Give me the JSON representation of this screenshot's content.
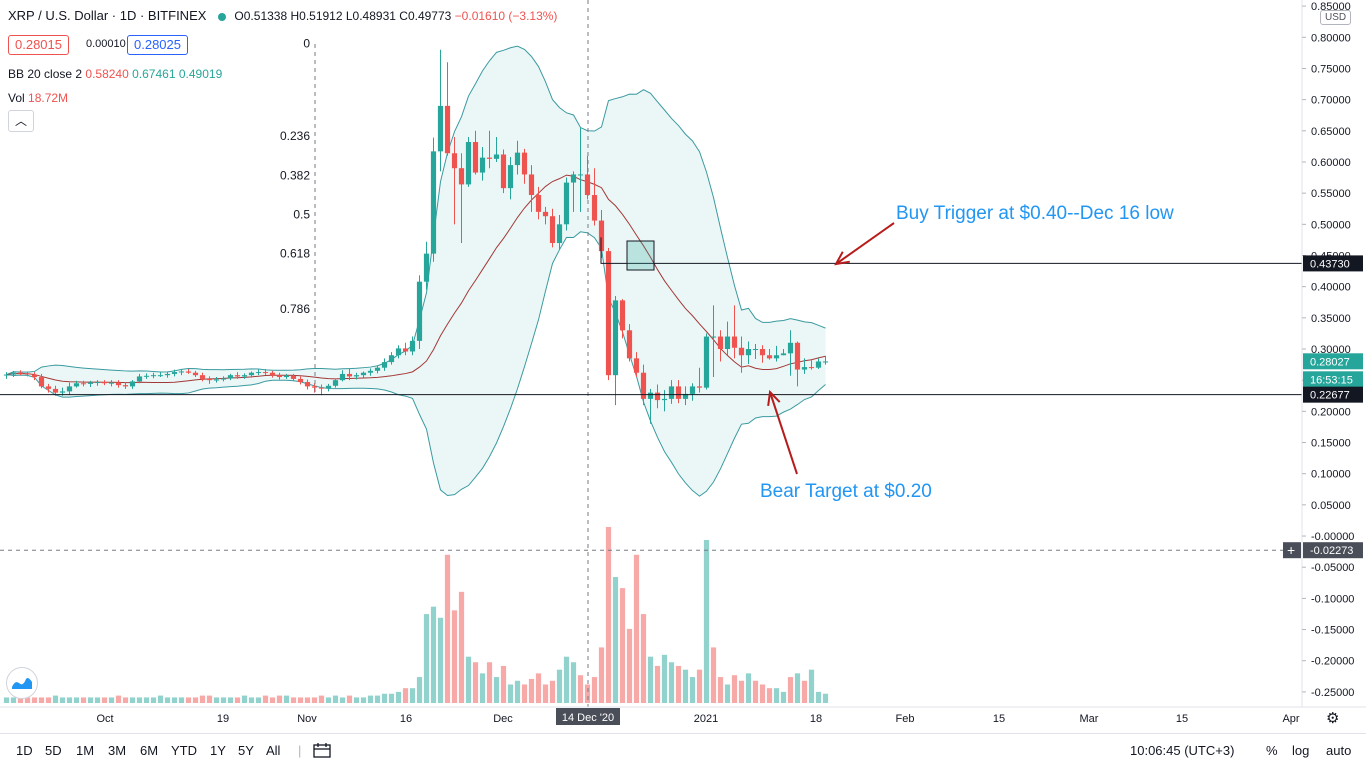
{
  "header": {
    "symbol": "XRP / U.S. Dollar · 1D · BITFINEX",
    "open": "O0.51338",
    "high": "H0.51912",
    "low": "L0.48931",
    "close": "C0.49773",
    "change": "−0.01610 (−3.13%)",
    "bid": "0.28015",
    "spread": "0.00010",
    "ask": "0.28025"
  },
  "indicators": {
    "bb_label": "BB 20 close 2",
    "bb_values": [
      "0.58240",
      "0.67461",
      "0.49019"
    ],
    "vol_label": "Vol",
    "vol_value": "18.72M"
  },
  "currency": "USD",
  "chart_data": {
    "type": "candlestick",
    "x_axis_ticks": [
      "Oct",
      "19",
      "Nov",
      "16",
      "Dec",
      "2021",
      "18",
      "Feb",
      "15",
      "Mar",
      "15",
      "Apr"
    ],
    "crosshair_date": "14 Dec '20",
    "y_axis_ticks": [
      "0.85000",
      "0.80000",
      "0.75000",
      "0.70000",
      "0.65000",
      "0.60000",
      "0.55000",
      "0.50000",
      "0.45000",
      "0.40000",
      "0.35000",
      "0.30000",
      "0.25000",
      "0.20000",
      "0.15000",
      "0.10000",
      "0.05000",
      "-0.00000",
      "-0.05000",
      "-0.10000",
      "-0.15000",
      "-0.20000",
      "-0.25000"
    ],
    "ylim": [
      -0.255,
      0.855
    ],
    "price_labels": {
      "level_high": "0.43730",
      "last": "0.28027",
      "countdown": "16:53:15",
      "level_low": "0.22677",
      "crosshair": "-0.02273"
    },
    "fibonacci": [
      {
        "label": "0",
        "price": 0.79
      },
      {
        "label": "0.236",
        "price": 0.642
      },
      {
        "label": "0.382",
        "price": 0.578
      },
      {
        "label": "0.5",
        "price": 0.516
      },
      {
        "label": "0.618",
        "price": 0.453
      },
      {
        "label": "0.786",
        "price": 0.364
      }
    ],
    "horizontal_levels": [
      0.4373,
      0.22677
    ],
    "annotations": [
      {
        "text": "Buy Trigger at $0.40--Dec 16 low"
      },
      {
        "text": "Bear Target at $0.20"
      }
    ],
    "series": [
      {
        "name": "Candles",
        "o": [
          0.258,
          0.259,
          0.262,
          0.261,
          0.259,
          0.255,
          0.24,
          0.236,
          0.23,
          0.232,
          0.24,
          0.245,
          0.244,
          0.246,
          0.247,
          0.245,
          0.246,
          0.242,
          0.24,
          0.248,
          0.256,
          0.257,
          0.258,
          0.258,
          0.26,
          0.263,
          0.264,
          0.262,
          0.258,
          0.252,
          0.25,
          0.251,
          0.253,
          0.258,
          0.256,
          0.258,
          0.262,
          0.263,
          0.262,
          0.258,
          0.255,
          0.257,
          0.252,
          0.247,
          0.24,
          0.238,
          0.237,
          0.241,
          0.25,
          0.26,
          0.256,
          0.258,
          0.262,
          0.265,
          0.27,
          0.279,
          0.29,
          0.301,
          0.296,
          0.313,
          0.408,
          0.453,
          0.617,
          0.69,
          0.614,
          0.59,
          0.564,
          0.632,
          0.583,
          0.607,
          0.605,
          0.612,
          0.558,
          0.595,
          0.615,
          0.58,
          0.547,
          0.52,
          0.513,
          0.47,
          0.5,
          0.567,
          0.58,
          0.58,
          0.547,
          0.506,
          0.457,
          0.258,
          0.378,
          0.33,
          0.285,
          0.262,
          0.22,
          0.23,
          0.218,
          0.22,
          0.24,
          0.22,
          0.228,
          0.24,
          0.238,
          0.32,
          0.32,
          0.3,
          0.32,
          0.302,
          0.29,
          0.3,
          0.3,
          0.29,
          0.285,
          0.29,
          0.293,
          0.31,
          0.267,
          0.271,
          0.27,
          0.28
        ],
        "h": [
          0.263,
          0.265,
          0.266,
          0.264,
          0.263,
          0.26,
          0.244,
          0.241,
          0.238,
          0.246,
          0.249,
          0.249,
          0.249,
          0.25,
          0.25,
          0.25,
          0.25,
          0.246,
          0.25,
          0.26,
          0.261,
          0.262,
          0.263,
          0.264,
          0.267,
          0.268,
          0.268,
          0.265,
          0.262,
          0.256,
          0.255,
          0.256,
          0.26,
          0.263,
          0.261,
          0.264,
          0.267,
          0.268,
          0.265,
          0.262,
          0.26,
          0.26,
          0.256,
          0.251,
          0.245,
          0.243,
          0.244,
          0.252,
          0.266,
          0.268,
          0.262,
          0.264,
          0.269,
          0.273,
          0.285,
          0.295,
          0.306,
          0.31,
          0.32,
          0.418,
          0.472,
          0.639,
          0.78,
          0.76,
          0.64,
          0.614,
          0.64,
          0.65,
          0.624,
          0.65,
          0.64,
          0.62,
          0.608,
          0.634,
          0.621,
          0.595,
          0.56,
          0.528,
          0.525,
          0.515,
          0.575,
          0.585,
          0.655,
          0.61,
          0.59,
          0.523,
          0.462,
          0.385,
          0.38,
          0.34,
          0.295,
          0.275,
          0.236,
          0.243,
          0.234,
          0.25,
          0.25,
          0.24,
          0.245,
          0.27,
          0.325,
          0.37,
          0.33,
          0.344,
          0.37,
          0.32,
          0.312,
          0.308,
          0.306,
          0.3,
          0.305,
          0.3,
          0.33,
          0.312,
          0.285,
          0.282,
          0.285,
          0.289
        ],
        "l": [
          0.252,
          0.255,
          0.258,
          0.256,
          0.25,
          0.237,
          0.23,
          0.225,
          0.225,
          0.227,
          0.238,
          0.24,
          0.239,
          0.241,
          0.242,
          0.24,
          0.238,
          0.236,
          0.236,
          0.245,
          0.252,
          0.253,
          0.255,
          0.254,
          0.256,
          0.258,
          0.26,
          0.255,
          0.248,
          0.244,
          0.246,
          0.248,
          0.25,
          0.252,
          0.252,
          0.254,
          0.258,
          0.258,
          0.254,
          0.251,
          0.252,
          0.249,
          0.243,
          0.235,
          0.23,
          0.226,
          0.232,
          0.238,
          0.248,
          0.25,
          0.251,
          0.254,
          0.257,
          0.261,
          0.265,
          0.275,
          0.285,
          0.29,
          0.29,
          0.3,
          0.395,
          0.44,
          0.585,
          0.61,
          0.5,
          0.47,
          0.56,
          0.58,
          0.57,
          0.59,
          0.6,
          0.55,
          0.54,
          0.58,
          0.565,
          0.52,
          0.508,
          0.5,
          0.463,
          0.46,
          0.49,
          0.52,
          0.52,
          0.54,
          0.498,
          0.446,
          0.25,
          0.21,
          0.317,
          0.28,
          0.255,
          0.21,
          0.18,
          0.205,
          0.2,
          0.212,
          0.213,
          0.21,
          0.217,
          0.23,
          0.235,
          0.255,
          0.28,
          0.29,
          0.285,
          0.262,
          0.276,
          0.284,
          0.278,
          0.283,
          0.28,
          0.29,
          0.257,
          0.24,
          0.26,
          0.267,
          0.268,
          0.275
        ],
        "c": [
          0.259,
          0.262,
          0.261,
          0.259,
          0.255,
          0.24,
          0.236,
          0.23,
          0.232,
          0.24,
          0.245,
          0.244,
          0.246,
          0.247,
          0.245,
          0.246,
          0.242,
          0.24,
          0.248,
          0.256,
          0.257,
          0.258,
          0.258,
          0.26,
          0.263,
          0.264,
          0.262,
          0.258,
          0.252,
          0.25,
          0.251,
          0.253,
          0.258,
          0.256,
          0.258,
          0.262,
          0.263,
          0.262,
          0.258,
          0.255,
          0.257,
          0.252,
          0.247,
          0.24,
          0.238,
          0.237,
          0.241,
          0.25,
          0.26,
          0.256,
          0.258,
          0.262,
          0.265,
          0.27,
          0.279,
          0.29,
          0.301,
          0.296,
          0.313,
          0.408,
          0.453,
          0.617,
          0.69,
          0.614,
          0.59,
          0.564,
          0.632,
          0.583,
          0.607,
          0.605,
          0.612,
          0.558,
          0.595,
          0.615,
          0.58,
          0.547,
          0.52,
          0.513,
          0.47,
          0.5,
          0.567,
          0.58,
          0.58,
          0.547,
          0.506,
          0.457,
          0.258,
          0.378,
          0.33,
          0.285,
          0.262,
          0.22,
          0.23,
          0.218,
          0.22,
          0.24,
          0.22,
          0.228,
          0.24,
          0.238,
          0.32,
          0.32,
          0.3,
          0.32,
          0.302,
          0.29,
          0.3,
          0.3,
          0.29,
          0.285,
          0.29,
          0.293,
          0.31,
          0.267,
          0.271,
          0.27,
          0.28,
          0.28
        ]
      },
      {
        "name": "Volume",
        "values": [
          3,
          3,
          3,
          3,
          3,
          3,
          3,
          4,
          3,
          3,
          3,
          3,
          3,
          3,
          3,
          3,
          4,
          3,
          3,
          3,
          3,
          3,
          4,
          3,
          3,
          3,
          3,
          3,
          4,
          4,
          3,
          3,
          3,
          3,
          4,
          3,
          3,
          4,
          3,
          4,
          4,
          3,
          3,
          3,
          3,
          4,
          3,
          4,
          3,
          4,
          3,
          3,
          4,
          4,
          5,
          5,
          6,
          8,
          8,
          14,
          48,
          52,
          46,
          80,
          50,
          60,
          25,
          22,
          16,
          22,
          14,
          20,
          10,
          12,
          10,
          13,
          16,
          10,
          12,
          18,
          25,
          22,
          15,
          10,
          14,
          30,
          95,
          68,
          62,
          40,
          80,
          48,
          25,
          20,
          26,
          22,
          20,
          18,
          14,
          18,
          88,
          30,
          14,
          10,
          15,
          12,
          16,
          12,
          10,
          8,
          8,
          6,
          14,
          16,
          12,
          18,
          6,
          5
        ]
      },
      {
        "name": "Volume colors",
        "values": [
          "u",
          "u",
          "d",
          "d",
          "d",
          "d",
          "d",
          "u",
          "u",
          "u",
          "u",
          "d",
          "u",
          "u",
          "d",
          "u",
          "d",
          "d",
          "u",
          "u",
          "u",
          "u",
          "u",
          "u",
          "u",
          "u",
          "d",
          "d",
          "d",
          "d",
          "u",
          "u",
          "u",
          "d",
          "u",
          "u",
          "u",
          "d",
          "d",
          "d",
          "u",
          "d",
          "d",
          "d",
          "d",
          "d",
          "u",
          "u",
          "u",
          "d",
          "u",
          "u",
          "u",
          "u",
          "u",
          "u",
          "u",
          "d",
          "u",
          "u",
          "u",
          "u",
          "u",
          "d",
          "d",
          "d",
          "u",
          "d",
          "u",
          "d",
          "u",
          "d",
          "u",
          "u",
          "d",
          "d",
          "d",
          "d",
          "d",
          "u",
          "u",
          "u",
          "d",
          "d",
          "d",
          "d",
          "d",
          "u",
          "d",
          "d",
          "d",
          "d",
          "u",
          "d",
          "u",
          "u",
          "d",
          "u",
          "u",
          "d",
          "u",
          "d",
          "d",
          "u",
          "d",
          "d",
          "u",
          "d",
          "d",
          "d",
          "u",
          "u",
          "d",
          "u",
          "d",
          "u",
          "u",
          "u"
        ]
      }
    ]
  },
  "bottom_bar": {
    "ranges": [
      "1D",
      "5D",
      "1M",
      "3M",
      "6M",
      "YTD",
      "1Y",
      "5Y",
      "All"
    ],
    "time": "10:06:45 (UTC+3)",
    "percent": "%",
    "log": "log",
    "auto": "auto"
  },
  "colors": {
    "up": "#26a69a",
    "down": "#ef5350",
    "band": "#3a9aa0",
    "basis": "#a33838"
  }
}
